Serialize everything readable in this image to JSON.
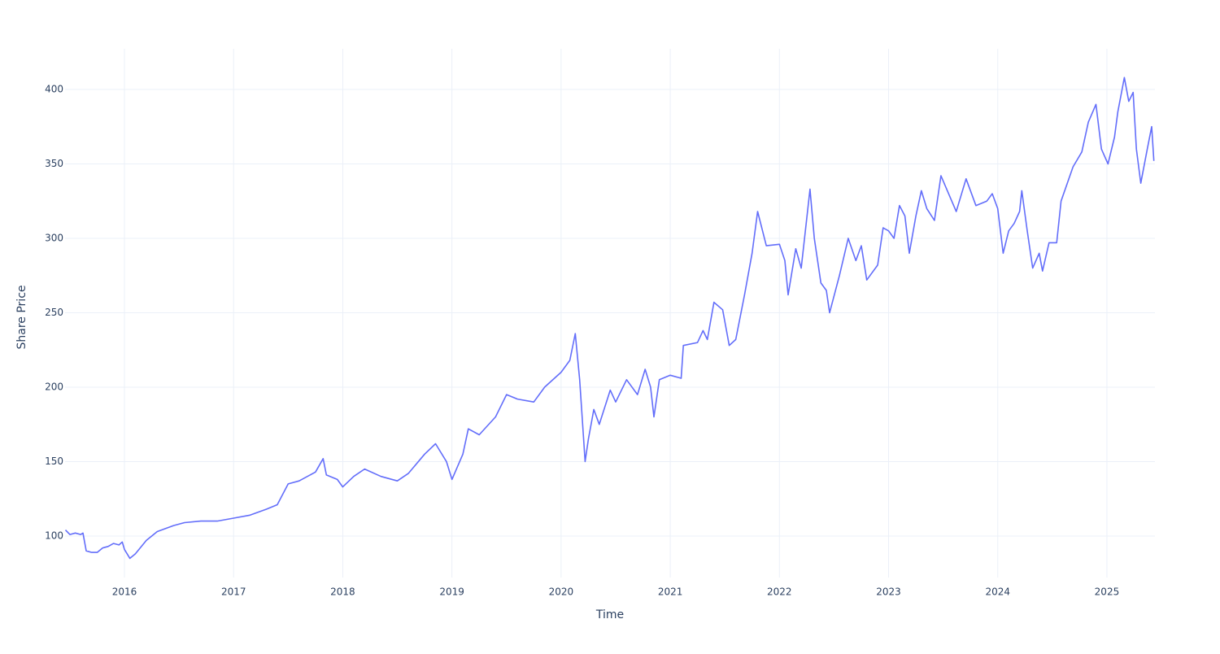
{
  "chart_data": {
    "type": "line",
    "x_label": "Time",
    "y_label": "Share Price",
    "color": "#636efa",
    "grid": true,
    "x": [
      2015.46,
      2015.5,
      2015.55,
      2015.6,
      2015.62,
      2015.65,
      2015.7,
      2015.75,
      2015.8,
      2015.85,
      2015.9,
      2015.95,
      2015.98,
      2016.0,
      2016.05,
      2016.1,
      2016.2,
      2016.3,
      2016.45,
      2016.55,
      2016.7,
      2016.85,
      2017.0,
      2017.15,
      2017.3,
      2017.4,
      2017.5,
      2017.6,
      2017.75,
      2017.82,
      2017.85,
      2017.95,
      2018.0,
      2018.1,
      2018.2,
      2018.35,
      2018.5,
      2018.6,
      2018.75,
      2018.85,
      2018.95,
      2019.0,
      2019.1,
      2019.15,
      2019.25,
      2019.4,
      2019.5,
      2019.6,
      2019.75,
      2019.85,
      2020.0,
      2020.08,
      2020.13,
      2020.17,
      2020.22,
      2020.25,
      2020.3,
      2020.35,
      2020.45,
      2020.5,
      2020.6,
      2020.7,
      2020.77,
      2020.82,
      2020.85,
      2020.9,
      2021.0,
      2021.1,
      2021.12,
      2021.25,
      2021.3,
      2021.34,
      2021.4,
      2021.48,
      2021.54,
      2021.6,
      2021.68,
      2021.75,
      2021.8,
      2021.88,
      2022.0,
      2022.05,
      2022.08,
      2022.15,
      2022.2,
      2022.28,
      2022.32,
      2022.38,
      2022.43,
      2022.46,
      2022.55,
      2022.63,
      2022.7,
      2022.75,
      2022.8,
      2022.9,
      2022.95,
      2023.0,
      2023.05,
      2023.1,
      2023.15,
      2023.19,
      2023.25,
      2023.3,
      2023.35,
      2023.42,
      2023.48,
      2023.55,
      2023.62,
      2023.71,
      2023.8,
      2023.9,
      2023.95,
      2024.0,
      2024.05,
      2024.1,
      2024.15,
      2024.2,
      2024.22,
      2024.27,
      2024.32,
      2024.38,
      2024.41,
      2024.47,
      2024.54,
      2024.58,
      2024.69,
      2024.77,
      2024.83,
      2024.9,
      2024.95,
      2025.01,
      2025.07,
      2025.1,
      2025.16,
      2025.2,
      2025.24,
      2025.27,
      2025.31,
      2025.37,
      2025.41,
      2025.43
    ],
    "values": [
      104,
      101,
      102,
      101,
      102,
      90,
      89,
      89,
      92,
      93,
      95,
      94,
      96,
      91,
      85,
      88,
      97,
      103,
      107,
      109,
      110,
      110,
      112,
      114,
      118,
      121,
      135,
      137,
      143,
      152,
      141,
      138,
      133,
      140,
      145,
      140,
      137,
      142,
      155,
      162,
      150,
      138,
      155,
      172,
      168,
      180,
      195,
      192,
      190,
      200,
      210,
      218,
      236,
      205,
      150,
      165,
      185,
      175,
      198,
      190,
      205,
      195,
      212,
      200,
      180,
      205,
      208,
      206,
      228,
      230,
      238,
      232,
      257,
      252,
      228,
      232,
      262,
      290,
      318,
      295,
      296,
      285,
      262,
      293,
      280,
      333,
      300,
      270,
      265,
      250,
      275,
      300,
      285,
      295,
      272,
      282,
      307,
      305,
      300,
      322,
      315,
      290,
      315,
      332,
      320,
      312,
      342,
      330,
      318,
      340,
      322,
      325,
      330,
      320,
      290,
      305,
      310,
      318,
      332,
      305,
      280,
      290,
      278,
      297,
      297,
      325,
      348,
      358,
      378,
      390,
      360,
      350,
      368,
      385,
      408,
      392,
      398,
      360,
      337,
      360,
      375,
      352
    ],
    "xlim": [
      2015.456,
      2025.44
    ],
    "xticks": [
      2016,
      2017,
      2018,
      2019,
      2020,
      2021,
      2022,
      2023,
      2024,
      2025
    ],
    "ylim": [
      72.1,
      427.3
    ],
    "yticks": [
      100,
      150,
      200,
      250,
      300,
      350,
      400
    ]
  }
}
